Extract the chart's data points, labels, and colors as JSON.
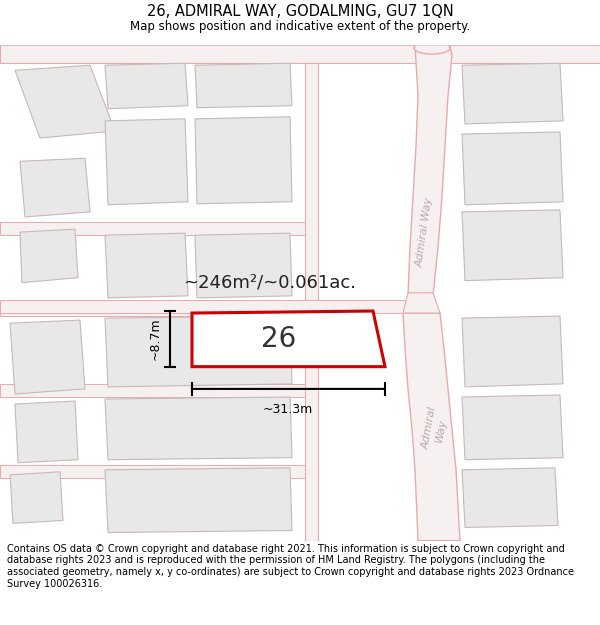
{
  "title": "26, ADMIRAL WAY, GODALMING, GU7 1QN",
  "subtitle": "Map shows position and indicative extent of the property.",
  "footer": "Contains OS data © Crown copyright and database right 2021. This information is subject to Crown copyright and database rights 2023 and is reproduced with the permission of HM Land Registry. The polygons (including the associated geometry, namely x, y co-ordinates) are subject to Crown copyright and database rights 2023 Ordnance Survey 100026316.",
  "area_text": "~246m²/~0.061ac.",
  "plot_number": "26",
  "dim_width": "~31.3m",
  "dim_height": "~8.7m",
  "map_bg": "#f7f6f4",
  "road_outline": "#e8aaaa",
  "road_fill": "#f7f0f0",
  "highlight_color": "#cc0000",
  "block_fill": "#e8e8e8",
  "block_outline": "#c8b8b8",
  "plot_fill": "#ffffff",
  "title_fontsize": 10.5,
  "subtitle_fontsize": 8.5,
  "footer_fontsize": 7.0
}
